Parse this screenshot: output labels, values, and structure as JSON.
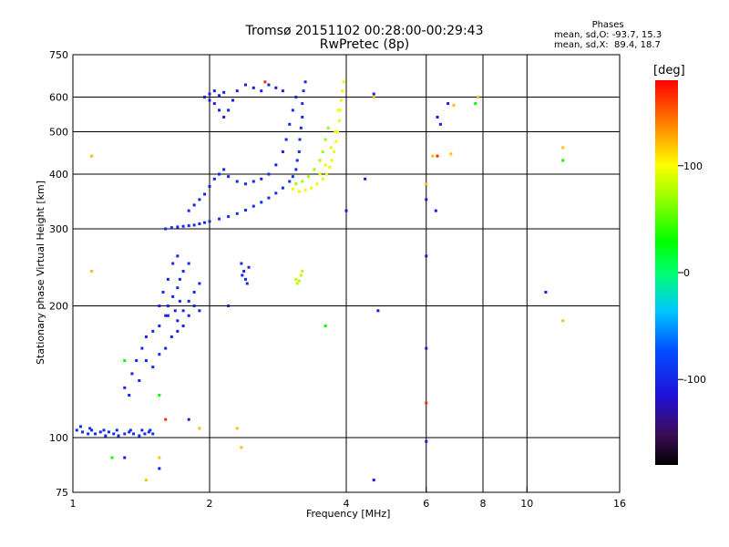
{
  "header": {
    "title_line1": "Tromsø 20151102 00:28:00-00:29:43",
    "title_line2": "RwPretec (8p)"
  },
  "phase_box": {
    "heading": "Phases",
    "line_o": "mean, sd,O: -93.7, 15.3",
    "line_x": "mean, sd,X:  89.4, 18.7"
  },
  "chart_data": {
    "type": "scatter",
    "xlabel": "Frequency [MHz]",
    "ylabel": "Stationary phase Virtual Height [km]",
    "x_scale": "log",
    "y_scale": "log",
    "xlim": [
      1,
      16
    ],
    "ylim": [
      75,
      750
    ],
    "x_ticks": [
      1,
      2,
      4,
      6,
      8,
      10,
      16
    ],
    "x_tick_labels": [
      "1",
      "2",
      "4",
      "6",
      "8",
      "10",
      "16"
    ],
    "x_gridlines": [
      2,
      4,
      6,
      8,
      10
    ],
    "y_ticks": [
      75,
      100,
      200,
      300,
      400,
      500,
      600,
      750
    ],
    "y_tick_labels": [
      "75",
      "100",
      "200",
      "300",
      "400",
      "500",
      "600",
      "750"
    ],
    "y_gridlines": [
      100,
      200,
      300,
      400,
      500,
      600
    ],
    "grid": true,
    "colorbar": {
      "unit": "[deg]",
      "min": -180,
      "max": 180,
      "ticks": [
        100,
        0,
        -100
      ],
      "tick_labels": [
        "100",
        "0",
        "-100"
      ]
    },
    "traces": [
      {
        "name": "low_e_layer",
        "phase": -95,
        "points": [
          [
            1.02,
            104
          ],
          [
            1.05,
            103
          ],
          [
            1.08,
            102
          ],
          [
            1.1,
            104
          ],
          [
            1.12,
            102
          ],
          [
            1.15,
            103
          ],
          [
            1.18,
            101
          ],
          [
            1.2,
            103
          ],
          [
            1.23,
            102
          ],
          [
            1.26,
            101
          ],
          [
            1.3,
            102
          ],
          [
            1.33,
            103
          ],
          [
            1.36,
            102
          ],
          [
            1.4,
            101
          ],
          [
            1.44,
            102
          ],
          [
            1.47,
            103
          ],
          [
            1.5,
            102
          ],
          [
            1.04,
            106
          ],
          [
            1.09,
            105
          ],
          [
            1.17,
            104
          ],
          [
            1.25,
            104
          ],
          [
            1.34,
            104
          ],
          [
            1.42,
            104
          ],
          [
            1.48,
            104
          ]
        ]
      },
      {
        "name": "e_scatter",
        "phase": -100,
        "points": [
          [
            1.3,
            130
          ],
          [
            1.35,
            140
          ],
          [
            1.38,
            150
          ],
          [
            1.42,
            160
          ],
          [
            1.45,
            170
          ],
          [
            1.5,
            175
          ],
          [
            1.55,
            180
          ],
          [
            1.6,
            190
          ],
          [
            1.62,
            200
          ],
          [
            1.66,
            210
          ],
          [
            1.7,
            220
          ],
          [
            1.72,
            230
          ],
          [
            1.75,
            240
          ],
          [
            1.8,
            250
          ],
          [
            1.6,
            160
          ],
          [
            1.65,
            170
          ],
          [
            1.7,
            185
          ],
          [
            1.75,
            195
          ],
          [
            1.8,
            205
          ],
          [
            1.85,
            215
          ],
          [
            1.9,
            225
          ],
          [
            1.55,
            200
          ],
          [
            1.58,
            215
          ],
          [
            1.62,
            230
          ],
          [
            1.66,
            250
          ],
          [
            1.7,
            260
          ],
          [
            1.45,
            150
          ],
          [
            1.5,
            145
          ],
          [
            1.55,
            155
          ],
          [
            1.4,
            135
          ],
          [
            1.33,
            125
          ],
          [
            1.75,
            180
          ],
          [
            1.8,
            190
          ],
          [
            1.85,
            200
          ],
          [
            1.9,
            195
          ],
          [
            1.62,
            190
          ],
          [
            1.68,
            195
          ],
          [
            1.72,
            205
          ]
        ]
      },
      {
        "name": "o_trace_main",
        "phase": -95,
        "points": [
          [
            1.6,
            300
          ],
          [
            1.65,
            302
          ],
          [
            1.7,
            303
          ],
          [
            1.75,
            304
          ],
          [
            1.8,
            305
          ],
          [
            1.85,
            306
          ],
          [
            1.9,
            308
          ],
          [
            1.95,
            310
          ],
          [
            2.0,
            312
          ],
          [
            2.1,
            316
          ],
          [
            2.2,
            320
          ],
          [
            2.3,
            325
          ],
          [
            2.4,
            331
          ],
          [
            2.5,
            338
          ],
          [
            2.6,
            345
          ],
          [
            2.7,
            353
          ],
          [
            2.8,
            362
          ],
          [
            2.9,
            372
          ],
          [
            3.0,
            385
          ],
          [
            3.05,
            395
          ],
          [
            3.1,
            410
          ],
          [
            3.12,
            430
          ],
          [
            3.15,
            450
          ],
          [
            3.16,
            480
          ],
          [
            3.18,
            510
          ],
          [
            3.2,
            540
          ],
          [
            3.2,
            580
          ],
          [
            3.22,
            620
          ],
          [
            3.25,
            650
          ]
        ]
      },
      {
        "name": "o_trace_upper",
        "phase": -100,
        "points": [
          [
            1.8,
            330
          ],
          [
            1.85,
            340
          ],
          [
            1.9,
            350
          ],
          [
            1.95,
            360
          ],
          [
            2.0,
            375
          ],
          [
            2.05,
            390
          ],
          [
            2.1,
            400
          ],
          [
            2.15,
            410
          ],
          [
            2.2,
            395
          ],
          [
            2.3,
            385
          ],
          [
            2.4,
            380
          ],
          [
            2.5,
            385
          ],
          [
            2.6,
            390
          ],
          [
            2.7,
            400
          ],
          [
            2.8,
            420
          ],
          [
            2.9,
            450
          ],
          [
            2.95,
            480
          ],
          [
            3.0,
            520
          ],
          [
            3.05,
            560
          ],
          [
            3.1,
            600
          ]
        ]
      },
      {
        "name": "o_top_cluster",
        "phase": -105,
        "points": [
          [
            1.95,
            600
          ],
          [
            2.0,
            610
          ],
          [
            2.05,
            620
          ],
          [
            2.1,
            605
          ],
          [
            2.15,
            615
          ],
          [
            2.0,
            590
          ],
          [
            2.05,
            580
          ],
          [
            2.1,
            560
          ],
          [
            2.15,
            540
          ],
          [
            2.2,
            560
          ],
          [
            2.25,
            590
          ],
          [
            2.3,
            620
          ],
          [
            2.4,
            640
          ],
          [
            2.5,
            630
          ],
          [
            2.6,
            620
          ],
          [
            2.7,
            640
          ],
          [
            2.8,
            630
          ],
          [
            2.9,
            620
          ]
        ]
      },
      {
        "name": "x_trace",
        "phase": 95,
        "points": [
          [
            3.05,
            370
          ],
          [
            3.15,
            365
          ],
          [
            3.25,
            368
          ],
          [
            3.35,
            372
          ],
          [
            3.45,
            380
          ],
          [
            3.55,
            390
          ],
          [
            3.62,
            400
          ],
          [
            3.68,
            415
          ],
          [
            3.72,
            430
          ],
          [
            3.76,
            450
          ],
          [
            3.8,
            475
          ],
          [
            3.83,
            500
          ],
          [
            3.86,
            530
          ],
          [
            3.88,
            560
          ],
          [
            3.9,
            590
          ],
          [
            3.92,
            620
          ],
          [
            3.95,
            650
          ],
          [
            3.5,
            400
          ],
          [
            3.6,
            420
          ],
          [
            3.7,
            460
          ],
          [
            3.78,
            500
          ],
          [
            3.84,
            560
          ]
        ]
      },
      {
        "name": "x_trace_inner",
        "phase": 70,
        "points": [
          [
            3.1,
            380
          ],
          [
            3.2,
            385
          ],
          [
            3.3,
            395
          ],
          [
            3.4,
            410
          ],
          [
            3.5,
            430
          ],
          [
            3.55,
            450
          ],
          [
            3.6,
            480
          ],
          [
            3.65,
            510
          ]
        ]
      },
      {
        "name": "patch_235",
        "phase": -100,
        "points": [
          [
            2.35,
            250
          ],
          [
            2.38,
            240
          ],
          [
            2.4,
            230
          ],
          [
            2.42,
            225
          ],
          [
            2.36,
            235
          ],
          [
            2.44,
            245
          ]
        ]
      },
      {
        "name": "patch_320",
        "phase": 80,
        "points": [
          [
            3.1,
            230
          ],
          [
            3.12,
            225
          ],
          [
            3.15,
            228
          ],
          [
            3.18,
            235
          ],
          [
            3.2,
            240
          ]
        ]
      },
      {
        "name": "noise_blue",
        "phase": -110,
        "points": [
          [
            4.6,
            80
          ],
          [
            4.7,
            195
          ],
          [
            6.0,
            98
          ],
          [
            6.0,
            160
          ],
          [
            6.0,
            260
          ],
          [
            6.0,
            350
          ],
          [
            6.3,
            330
          ],
          [
            6.35,
            540
          ],
          [
            6.45,
            520
          ],
          [
            6.7,
            580
          ],
          [
            11.0,
            215
          ],
          [
            1.3,
            90
          ],
          [
            1.55,
            85
          ],
          [
            1.7,
            175
          ],
          [
            2.2,
            200
          ],
          [
            1.8,
            110
          ],
          [
            4.0,
            330
          ],
          [
            4.4,
            390
          ],
          [
            4.6,
            610
          ]
        ]
      },
      {
        "name": "noise_warm",
        "phase": 120,
        "points": [
          [
            1.1,
            440
          ],
          [
            1.1,
            240
          ],
          [
            1.45,
            80
          ],
          [
            1.55,
            90
          ],
          [
            2.3,
            105
          ],
          [
            2.35,
            95
          ],
          [
            1.9,
            105
          ],
          [
            6.0,
            380
          ],
          [
            6.2,
            440
          ],
          [
            6.8,
            445
          ],
          [
            7.8,
            600
          ],
          [
            12.0,
            460
          ],
          [
            12.0,
            185
          ],
          [
            4.6,
            600
          ],
          [
            6.9,
            575
          ]
        ]
      },
      {
        "name": "noise_green",
        "phase": 30,
        "points": [
          [
            1.3,
            150
          ],
          [
            1.55,
            125
          ],
          [
            12.0,
            430
          ],
          [
            7.7,
            580
          ],
          [
            1.22,
            90
          ],
          [
            3.6,
            180
          ]
        ]
      },
      {
        "name": "noise_red",
        "phase": 165,
        "points": [
          [
            6.35,
            440
          ],
          [
            2.65,
            650
          ],
          [
            1.6,
            110
          ],
          [
            6.0,
            120
          ]
        ]
      }
    ]
  },
  "colors": {
    "background": "#ffffff",
    "axis": "#000000",
    "grid": "#000000"
  }
}
